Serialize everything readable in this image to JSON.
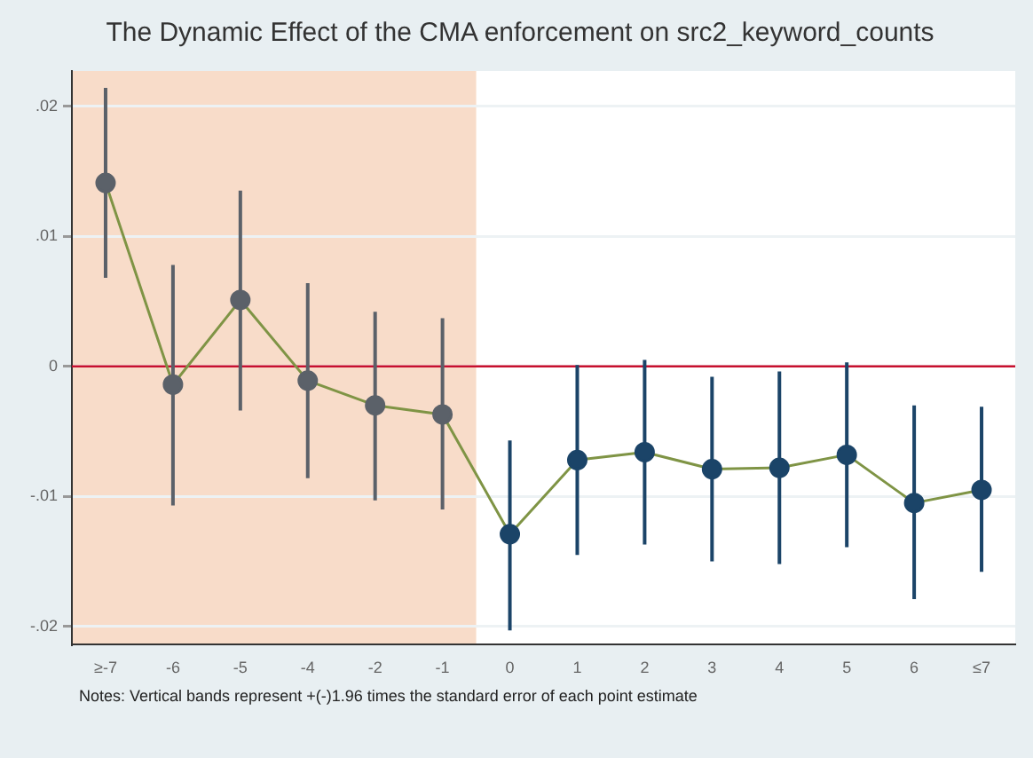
{
  "chart_data": {
    "type": "line",
    "title": "The Dynamic Effect of the CMA enforcement on src2_keyword_counts",
    "categories": [
      "≥-7",
      "-6",
      "-5",
      "-4",
      "-2",
      "-1",
      "0",
      "1",
      "2",
      "3",
      "4",
      "5",
      "6",
      "≤7"
    ],
    "series": [
      {
        "color": "#7f9445",
        "colors": [
          "#5b6169",
          "#5b6169",
          "#5b6169",
          "#5b6169",
          "#5b6169",
          "#5b6169",
          "#1b4468",
          "#1b4468",
          "#1b4468",
          "#1b4468",
          "#1b4468",
          "#1b4468",
          "#1b4468",
          "#1b4468"
        ],
        "values": [
          0.0141,
          -0.0014,
          0.0051,
          -0.0011,
          -0.003,
          -0.0037,
          -0.0129,
          -0.0072,
          -0.0066,
          -0.0079,
          -0.0078,
          -0.0068,
          -0.0105,
          -0.0095
        ],
        "errors": [
          [
            0.0068,
            0.0214
          ],
          [
            -0.0107,
            0.0078
          ],
          [
            -0.0034,
            0.0135
          ],
          [
            -0.0086,
            0.0064
          ],
          [
            -0.0103,
            0.0042
          ],
          [
            -0.011,
            0.0037
          ],
          [
            -0.0203,
            -0.0057
          ],
          [
            -0.0145,
            0.0001
          ],
          [
            -0.0137,
            0.0005
          ],
          [
            -0.015,
            -0.0008
          ],
          [
            -0.0152,
            -0.0004
          ],
          [
            -0.0139,
            0.0003
          ],
          [
            -0.0179,
            -0.003
          ],
          [
            -0.0158,
            -0.0031
          ]
        ]
      }
    ],
    "ylim": [
      -0.0214,
      0.0227
    ],
    "yticks": [
      {
        "value": 0.02,
        "label": ".02"
      },
      {
        "value": 0.01,
        "label": ".01"
      },
      {
        "value": 0,
        "label": "0"
      },
      {
        "value": -0.01,
        "label": "-.01"
      },
      {
        "value": -0.02,
        "label": "-.02"
      }
    ],
    "ref_lines": [
      {
        "axis": "y",
        "value": 0,
        "color": "#c8102e"
      }
    ],
    "bands": [
      {
        "axis": "x",
        "from": "≥-7",
        "to": "-1",
        "color": "#f8dcc9"
      }
    ],
    "annotations": [
      "Notes: Vertical bands represent +(-)1.96 times the standard error of each point estimate"
    ],
    "grid": "y",
    "legend": false,
    "marker": "circle",
    "line_style": "solid"
  }
}
